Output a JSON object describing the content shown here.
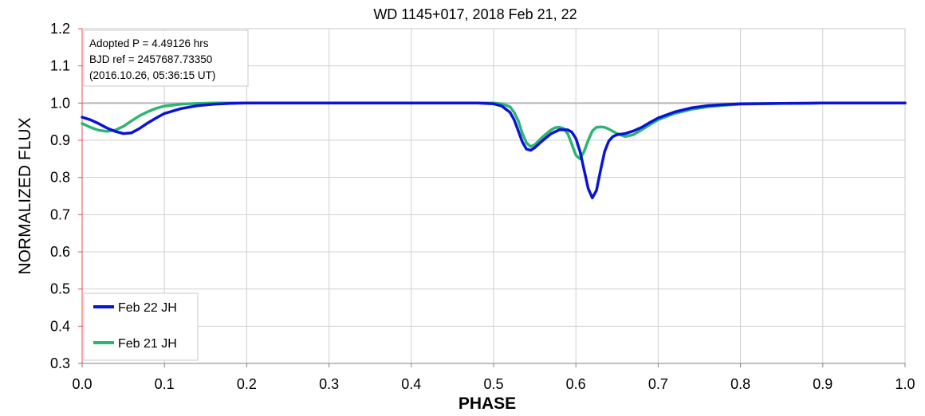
{
  "chart_data": {
    "type": "line",
    "title": "WD 1145+017, 2018 Feb 21, 22",
    "xlabel": "PHASE",
    "ylabel": "NORMALIZED FLUX",
    "xlim": [
      0.0,
      1.0
    ],
    "ylim": [
      0.3,
      1.2
    ],
    "x_ticks": [
      "0.0",
      "0.1",
      "0.2",
      "0.3",
      "0.4",
      "0.5",
      "0.6",
      "0.7",
      "0.8",
      "0.9",
      "1.0"
    ],
    "y_ticks": [
      "0.3",
      "0.4",
      "0.5",
      "0.6",
      "0.7",
      "0.8",
      "0.9",
      "1.0",
      "1.1",
      "1.2"
    ],
    "grid": true,
    "reference_line": 1.0,
    "annotation": {
      "lines": [
        "Adopted P = 4.49126 hrs",
        "BJD ref = 2457687.73350",
        "(2016.10.26, 05:36:15 UT)"
      ],
      "placement": "top-left"
    },
    "legend_placement": "bottom-left",
    "series": [
      {
        "name": "Feb 22 JH",
        "color": "#0a14d2",
        "x": [
          0.0,
          0.01,
          0.02,
          0.03,
          0.04,
          0.05,
          0.06,
          0.07,
          0.08,
          0.09,
          0.1,
          0.12,
          0.14,
          0.16,
          0.18,
          0.2,
          0.25,
          0.3,
          0.35,
          0.4,
          0.45,
          0.48,
          0.5,
          0.51,
          0.52,
          0.525,
          0.53,
          0.535,
          0.54,
          0.545,
          0.55,
          0.56,
          0.57,
          0.58,
          0.59,
          0.595,
          0.6,
          0.605,
          0.61,
          0.615,
          0.62,
          0.625,
          0.63,
          0.635,
          0.64,
          0.645,
          0.65,
          0.66,
          0.67,
          0.68,
          0.69,
          0.7,
          0.72,
          0.74,
          0.76,
          0.78,
          0.8,
          0.85,
          0.9,
          0.95,
          1.0
        ],
        "y": [
          0.962,
          0.955,
          0.945,
          0.933,
          0.924,
          0.918,
          0.92,
          0.932,
          0.947,
          0.96,
          0.972,
          0.985,
          0.993,
          0.997,
          0.999,
          1.0,
          1.0,
          1.0,
          1.0,
          1.0,
          1.0,
          1.0,
          0.998,
          0.992,
          0.975,
          0.955,
          0.925,
          0.895,
          0.876,
          0.873,
          0.88,
          0.9,
          0.918,
          0.928,
          0.928,
          0.922,
          0.905,
          0.87,
          0.82,
          0.77,
          0.745,
          0.765,
          0.82,
          0.87,
          0.898,
          0.91,
          0.915,
          0.918,
          0.925,
          0.935,
          0.948,
          0.96,
          0.976,
          0.987,
          0.993,
          0.996,
          0.998,
          0.999,
          1.0,
          1.0,
          1.0
        ]
      },
      {
        "name": "Feb 21 JH",
        "color": "#2db573",
        "x": [
          0.0,
          0.01,
          0.02,
          0.03,
          0.04,
          0.05,
          0.06,
          0.07,
          0.08,
          0.09,
          0.1,
          0.12,
          0.14,
          0.16,
          0.18,
          0.2,
          0.25,
          0.3,
          0.35,
          0.4,
          0.45,
          0.48,
          0.5,
          0.51,
          0.52,
          0.525,
          0.53,
          0.535,
          0.54,
          0.545,
          0.55,
          0.56,
          0.57,
          0.575,
          0.58,
          0.585,
          0.59,
          0.595,
          0.6,
          0.605,
          0.61,
          0.615,
          0.62,
          0.625,
          0.63,
          0.635,
          0.64,
          0.65,
          0.66,
          0.67,
          0.68,
          0.69,
          0.7,
          0.72,
          0.74,
          0.76,
          0.78,
          0.8,
          0.85,
          0.9,
          0.95,
          1.0
        ],
        "y": [
          0.945,
          0.935,
          0.927,
          0.924,
          0.927,
          0.937,
          0.952,
          0.966,
          0.977,
          0.986,
          0.992,
          0.997,
          0.999,
          1.0,
          1.0,
          1.0,
          1.0,
          1.0,
          1.0,
          1.0,
          1.0,
          1.0,
          1.0,
          0.998,
          0.99,
          0.975,
          0.952,
          0.918,
          0.893,
          0.883,
          0.888,
          0.91,
          0.928,
          0.934,
          0.935,
          0.932,
          0.918,
          0.89,
          0.86,
          0.85,
          0.87,
          0.9,
          0.925,
          0.935,
          0.936,
          0.935,
          0.93,
          0.918,
          0.91,
          0.915,
          0.928,
          0.942,
          0.955,
          0.972,
          0.983,
          0.99,
          0.994,
          0.997,
          0.999,
          1.0,
          1.0,
          1.0
        ]
      }
    ]
  }
}
